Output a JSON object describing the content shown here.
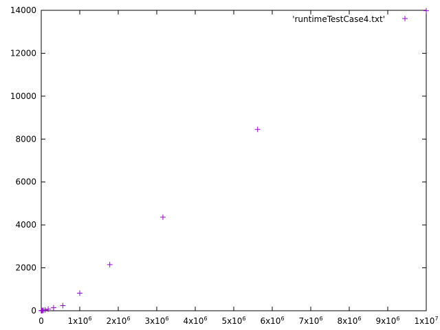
{
  "chart_data": {
    "type": "scatter",
    "title": "",
    "xlabel": "",
    "ylabel": "",
    "xlim": [
      0,
      10000000
    ],
    "ylim": [
      0,
      14000
    ],
    "grid": false,
    "legend_position": "top-right",
    "x_ticks": [
      {
        "value": 0,
        "base": "0",
        "exp": ""
      },
      {
        "value": 1000000,
        "base": "1x10",
        "exp": "6"
      },
      {
        "value": 2000000,
        "base": "2x10",
        "exp": "6"
      },
      {
        "value": 3000000,
        "base": "3x10",
        "exp": "6"
      },
      {
        "value": 4000000,
        "base": "4x10",
        "exp": "6"
      },
      {
        "value": 5000000,
        "base": "5x10",
        "exp": "6"
      },
      {
        "value": 6000000,
        "base": "6x10",
        "exp": "6"
      },
      {
        "value": 7000000,
        "base": "7x10",
        "exp": "6"
      },
      {
        "value": 8000000,
        "base": "8x10",
        "exp": "6"
      },
      {
        "value": 9000000,
        "base": "9x10",
        "exp": "6"
      },
      {
        "value": 10000000,
        "base": "1x10",
        "exp": "7"
      }
    ],
    "y_ticks": [
      {
        "value": 0,
        "label": "0"
      },
      {
        "value": 2000,
        "label": "2000"
      },
      {
        "value": 4000,
        "label": "4000"
      },
      {
        "value": 6000,
        "label": "6000"
      },
      {
        "value": 8000,
        "label": "8000"
      },
      {
        "value": 10000,
        "label": "10000"
      },
      {
        "value": 12000,
        "label": "12000"
      },
      {
        "value": 14000,
        "label": "14000"
      }
    ],
    "series": [
      {
        "name": "'runtimeTestCase4.txt'",
        "color": "#9400d3",
        "marker": "plus",
        "points": [
          {
            "x": 1000,
            "y": 1
          },
          {
            "x": 2000,
            "y": 2
          },
          {
            "x": 5000,
            "y": 3
          },
          {
            "x": 10000,
            "y": 5
          },
          {
            "x": 18000,
            "y": 8
          },
          {
            "x": 32000,
            "y": 12
          },
          {
            "x": 56000,
            "y": 20
          },
          {
            "x": 100000,
            "y": 35
          },
          {
            "x": 180000,
            "y": 75
          },
          {
            "x": 320000,
            "y": 140
          },
          {
            "x": 560000,
            "y": 240
          },
          {
            "x": 1000000,
            "y": 820
          },
          {
            "x": 1780000,
            "y": 2150
          },
          {
            "x": 3160000,
            "y": 4360
          },
          {
            "x": 5620000,
            "y": 8450
          },
          {
            "x": 10000000,
            "y": 13980
          }
        ]
      }
    ]
  }
}
